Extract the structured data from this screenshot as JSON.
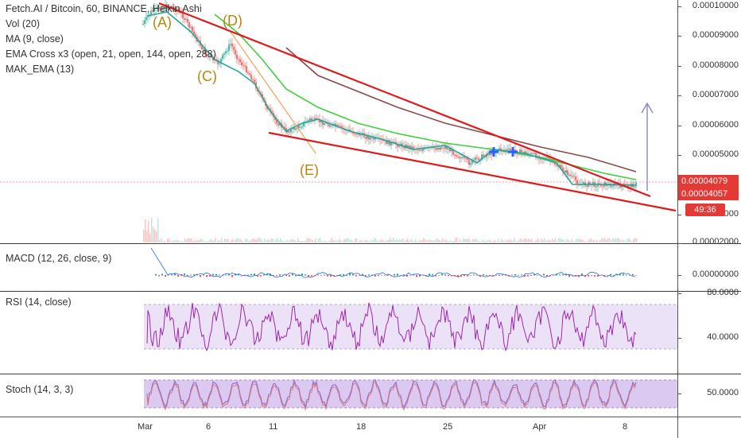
{
  "legend": {
    "symbol": "Fetch.AI / Bitcoin, 60, BINANCE, Heikin Ashi",
    "vol": "Vol (20)",
    "ma": "MA (9, close)",
    "ema": "EMA Cross x3 (open, 21, open, 144, open, 288)",
    "mak": "MAK_EMA (13)"
  },
  "annotations": {
    "a": "(A)",
    "c": "(C)",
    "d": "(D)",
    "e": "(E)"
  },
  "price_axis": {
    "ticks": [
      "0.00010000",
      "0.00009000",
      "0.00008000",
      "0.00007000",
      "0.00006000",
      "0.00005000",
      "0.00003000",
      "0.00002000"
    ],
    "last_price": "0.00004079",
    "ma_price": "0.00004057",
    "countdown": "49:36"
  },
  "macd": {
    "label": "MACD (12, 26, close, 9)",
    "tick": "0.00000000"
  },
  "rsi": {
    "label": "RSI (14, close)",
    "ticks": [
      "80.0000",
      "40.0000"
    ]
  },
  "stoch": {
    "label": "Stoch (14, 3, 3)",
    "tick": "50.0000"
  },
  "time_axis": {
    "ticks": [
      "Mar",
      "6",
      "11",
      "18",
      "25",
      "Apr",
      "8"
    ]
  },
  "colors": {
    "trendline": "#e0191b",
    "ema_green": "#33cc33",
    "ema_brown": "#8b4a4a",
    "ma_teal": "#26a69a",
    "last_price_badge": "#e53935",
    "ma_badge": "#e53935",
    "rsi_band": "#e8dcf6",
    "stoch_band": "#dcc8f2",
    "oscillator": "#9c27b0"
  }
}
